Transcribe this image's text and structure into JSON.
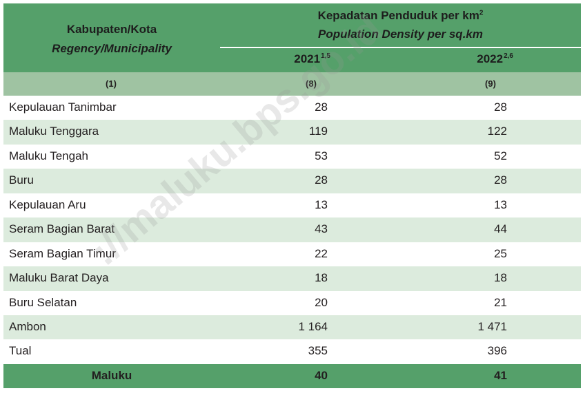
{
  "header": {
    "col1_title": "Kabupaten/Kota",
    "col1_subtitle": "Regency/Municipality",
    "col2_title": "Kepadatan Penduduk per km",
    "col2_title_sup": "2",
    "col2_subtitle": "Population Density per sq.km",
    "year1": "2021",
    "year1_sup": "1,5",
    "year2": "2022",
    "year2_sup": "2,6"
  },
  "column_numbers": [
    "(1)",
    "(8)",
    "(9)"
  ],
  "rows": [
    {
      "name": "Kepulauan Tanimbar",
      "v2021": "28",
      "v2022": "28"
    },
    {
      "name": "Maluku Tenggara",
      "v2021": "119",
      "v2022": "122"
    },
    {
      "name": "Maluku Tengah",
      "v2021": "53",
      "v2022": "52"
    },
    {
      "name": "Buru",
      "v2021": "28",
      "v2022": "28"
    },
    {
      "name": "Kepulauan Aru",
      "v2021": "13",
      "v2022": "13"
    },
    {
      "name": "Seram Bagian Barat",
      "v2021": "43",
      "v2022": "44"
    },
    {
      "name": "Seram Bagian Timur",
      "v2021": "22",
      "v2022": "25"
    },
    {
      "name": "Maluku Barat Daya",
      "v2021": "18",
      "v2022": "18"
    },
    {
      "name": "Buru Selatan",
      "v2021": "20",
      "v2022": "21"
    },
    {
      "name": "Ambon",
      "v2021": "1 164",
      "v2022": "1 471"
    },
    {
      "name": "Tual",
      "v2021": "355",
      "v2022": "396"
    }
  ],
  "total": {
    "name": "Maluku",
    "v2021": "40",
    "v2022": "41"
  },
  "watermark": "://maluku.bps.go.id",
  "colors": {
    "header": "#55a06a",
    "subheader": "#9fc3a2",
    "alt_row": "#dcebdd"
  }
}
